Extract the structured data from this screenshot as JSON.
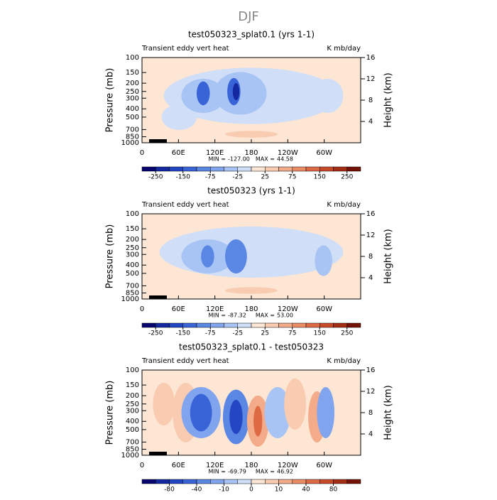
{
  "title": "DJF",
  "chart_data": [
    {
      "type": "contour",
      "title": "test050323_splat0.1 (yrs 1-1)",
      "left_string": "Transient eddy vert heat",
      "right_string": "K mb/day",
      "y_label": "Pressure (mb)",
      "y2_label": "Height (km)",
      "ylog": true,
      "ylim": [
        1000,
        100
      ],
      "yticks": [
        100,
        150,
        200,
        250,
        300,
        400,
        500,
        700,
        850,
        1000
      ],
      "y2lim": [
        0,
        16
      ],
      "y2ticks": [
        4,
        8,
        12,
        16
      ],
      "xlim": [
        0,
        360
      ],
      "xticks": [
        0,
        {
          "value": 60,
          "label": "60E"
        },
        {
          "value": 120,
          "label": "120E"
        },
        180,
        {
          "value": 240,
          "label": "120W"
        },
        {
          "value": 300,
          "label": "60W"
        }
      ],
      "min_label": "MIN =",
      "min": {
        "value": -127,
        "label": "-127.00"
      },
      "max_label": "MAX =",
      "max": {
        "value": 44.58,
        "label": "44.58"
      },
      "colorbar": {
        "colors": [
          "#06066e",
          "#1428a0",
          "#2446c4",
          "#3864d8",
          "#5a86e4",
          "#80a4ee",
          "#a8c4f4",
          "#d0def8",
          "#fde6d4",
          "#f9cbb0",
          "#f3ab8a",
          "#ec8c66",
          "#de6a44",
          "#c84a28",
          "#a42c14",
          "#741006"
        ],
        "ticks": [
          -250,
          -150,
          -75,
          -25,
          25,
          75,
          150,
          250
        ]
      }
    },
    {
      "type": "contour",
      "title": "test050323 (yrs 1-1)",
      "left_string": "Transient eddy vert heat",
      "right_string": "K mb/day",
      "y_label": "Pressure (mb)",
      "y2_label": "Height (km)",
      "ylog": true,
      "ylim": [
        1000,
        100
      ],
      "yticks": [
        100,
        150,
        200,
        250,
        300,
        400,
        500,
        700,
        850,
        1000
      ],
      "y2lim": [
        0,
        16
      ],
      "y2ticks": [
        4,
        8,
        12,
        16
      ],
      "xlim": [
        0,
        360
      ],
      "xticks": [
        0,
        {
          "value": 60,
          "label": "60E"
        },
        {
          "value": 120,
          "label": "120E"
        },
        180,
        {
          "value": 240,
          "label": "120W"
        },
        {
          "value": 300,
          "label": "60W"
        }
      ],
      "min_label": "MIN =",
      "min": {
        "value": -87.32,
        "label": "-87.32"
      },
      "max_label": "MAX =",
      "max": {
        "value": 53,
        "label": "53.00"
      },
      "colorbar": {
        "colors": [
          "#06066e",
          "#1428a0",
          "#2446c4",
          "#3864d8",
          "#5a86e4",
          "#80a4ee",
          "#a8c4f4",
          "#d0def8",
          "#fde6d4",
          "#f9cbb0",
          "#f3ab8a",
          "#ec8c66",
          "#de6a44",
          "#c84a28",
          "#a42c14",
          "#741006"
        ],
        "ticks": [
          -250,
          -150,
          -75,
          -25,
          25,
          75,
          150,
          250
        ]
      }
    },
    {
      "type": "contour",
      "title": "test050323_splat0.1 - test050323",
      "left_string": "Transient eddy vert heat",
      "right_string": "K mb/day",
      "y_label": "Pressure (mb)",
      "y2_label": "Height (km)",
      "ylog": true,
      "ylim": [
        1000,
        100
      ],
      "yticks": [
        100,
        150,
        200,
        250,
        300,
        400,
        500,
        700,
        850,
        1000
      ],
      "y2lim": [
        0,
        16
      ],
      "y2ticks": [
        4,
        8,
        12,
        16
      ],
      "xlim": [
        0,
        360
      ],
      "xticks": [
        0,
        {
          "value": 60,
          "label": "60E"
        },
        {
          "value": 120,
          "label": "120E"
        },
        180,
        {
          "value": 240,
          "label": "120W"
        },
        {
          "value": 300,
          "label": "60W"
        }
      ],
      "min_label": "MIN =",
      "min": {
        "value": -69.79,
        "label": "-69.79"
      },
      "max_label": "MAX =",
      "max": {
        "value": 46.92,
        "label": "46.92"
      },
      "colorbar": {
        "colors": [
          "#06066e",
          "#1428a0",
          "#2446c4",
          "#3864d8",
          "#5a86e4",
          "#80a4ee",
          "#a8c4f4",
          "#d0def8",
          "#fde6d4",
          "#f9cbb0",
          "#f3ab8a",
          "#ec8c66",
          "#de6a44",
          "#c84a28",
          "#a42c14",
          "#741006"
        ],
        "ticks": [
          -80,
          -40,
          -10,
          0,
          10,
          40,
          80
        ]
      }
    }
  ]
}
